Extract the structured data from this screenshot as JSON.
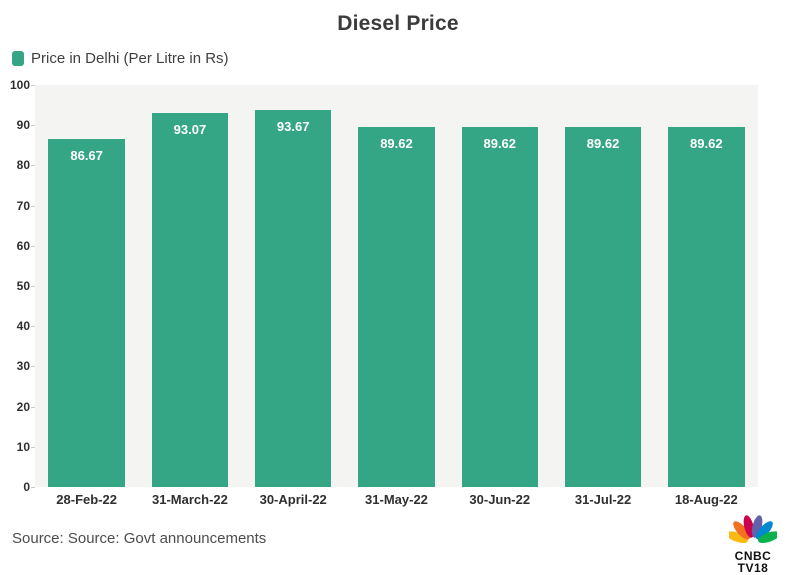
{
  "page": {
    "title": "Diesel Price"
  },
  "legend": {
    "label": "Price in Delhi (Per Litre in Rs)"
  },
  "chart_data": {
    "type": "bar",
    "title": "Diesel Price",
    "series_label": "Price in Delhi (Per Litre in Rs)",
    "categories": [
      "28-Feb-22",
      "31-March-22",
      "30-April-22",
      "31-May-22",
      "30-Jun-22",
      "31-Jul-22",
      "18-Aug-22"
    ],
    "values": [
      86.67,
      93.07,
      93.67,
      89.62,
      89.62,
      89.62,
      89.62
    ],
    "xlabel": "",
    "ylabel": "",
    "ylim": [
      0,
      100
    ],
    "yticks": [
      0,
      10,
      20,
      30,
      40,
      50,
      60,
      70,
      80,
      90,
      100
    ],
    "grid": false,
    "legend_position": "top-left",
    "bar_color": "#35a685",
    "plot_background": "#f4f4f3",
    "value_label_color": "#ffffff",
    "axis_label_color": "#2f2f2f"
  },
  "footer": {
    "source": "Source: Source: Govt announcements"
  },
  "logo": {
    "line1": "CNBC",
    "line2": "TV18",
    "feather_colors": [
      "#fdb913",
      "#f37021",
      "#cc004c",
      "#6460aa",
      "#0089d0",
      "#0db14b"
    ]
  }
}
